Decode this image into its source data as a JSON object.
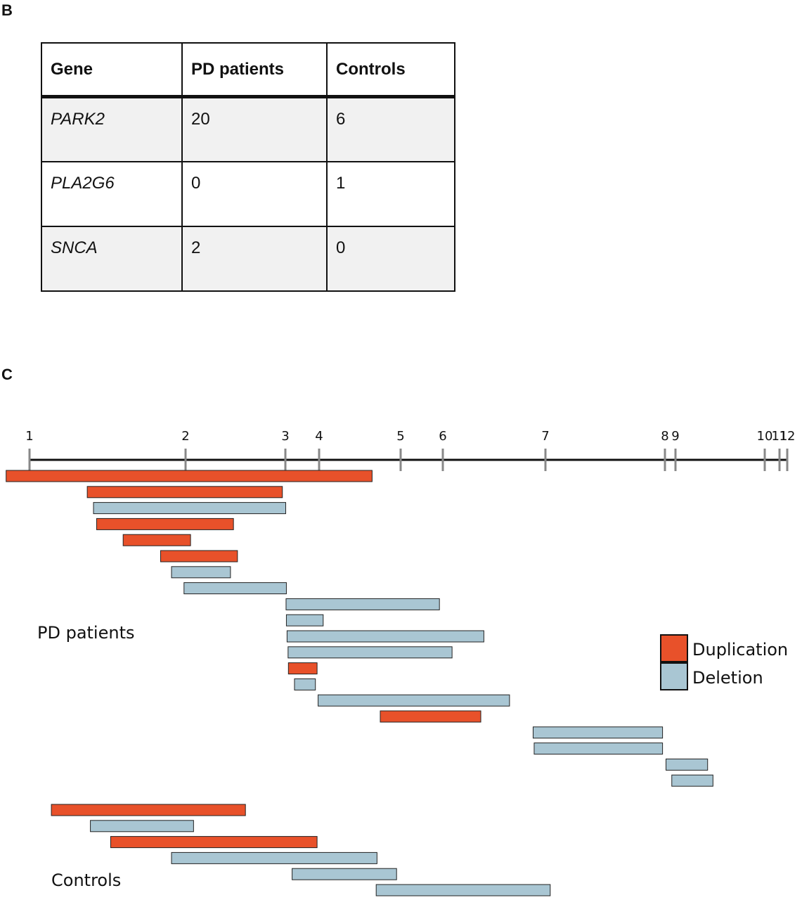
{
  "panels": {
    "b": "B",
    "c": "C"
  },
  "table": {
    "headers": [
      "Gene",
      "PD patients",
      "Controls"
    ],
    "rows": [
      {
        "gene": "PARK2",
        "pd": "20",
        "controls": "6"
      },
      {
        "gene": "PLA2G6",
        "pd": "0",
        "controls": "1"
      },
      {
        "gene": "SNCA",
        "pd": "2",
        "controls": "0"
      }
    ]
  },
  "diagram": {
    "exon_labels": [
      "1",
      "2",
      "3",
      "4",
      "5",
      "6",
      "7",
      "8",
      "9",
      "10",
      "11",
      "12"
    ],
    "group_labels": {
      "patients": "PD patients",
      "controls": "Controls"
    },
    "legend": [
      {
        "label": "Duplication",
        "color": "#e8512a"
      },
      {
        "label": "Deletion",
        "color": "#a9c6d3"
      }
    ],
    "colors": {
      "duplication": "#e8512a",
      "deletion": "#a9c6d3",
      "axis": "#111111",
      "tick": "#888888"
    },
    "patients": [
      {
        "type": "duplication",
        "start": 0.85,
        "end": 4.65
      },
      {
        "type": "duplication",
        "start": 1.37,
        "end": 2.97
      },
      {
        "type": "deletion",
        "start": 1.41,
        "end": 3.01
      },
      {
        "type": "duplication",
        "start": 1.43,
        "end": 2.48
      },
      {
        "type": "duplication",
        "start": 1.6,
        "end": 2.05
      },
      {
        "type": "duplication",
        "start": 1.84,
        "end": 2.52
      },
      {
        "type": "deletion",
        "start": 1.91,
        "end": 2.45
      },
      {
        "type": "deletion",
        "start": 1.99,
        "end": 3.03
      },
      {
        "type": "deletion",
        "start": 3.02,
        "end": 5.92
      },
      {
        "type": "deletion",
        "start": 3.03,
        "end": 4.05
      },
      {
        "type": "deletion",
        "start": 3.05,
        "end": 6.4
      },
      {
        "type": "deletion",
        "start": 3.08,
        "end": 6.09
      },
      {
        "type": "duplication",
        "start": 3.09,
        "end": 3.94
      },
      {
        "type": "deletion",
        "start": 3.27,
        "end": 3.89
      },
      {
        "type": "deletion",
        "start": 3.97,
        "end": 6.65
      },
      {
        "type": "duplication",
        "start": 4.75,
        "end": 6.37
      },
      {
        "type": "deletion",
        "start": 6.88,
        "end": 7.98
      },
      {
        "type": "deletion",
        "start": 6.89,
        "end": 7.98
      },
      {
        "type": "deletion",
        "start": 8.1,
        "end": 9.36
      },
      {
        "type": "deletion",
        "start": 8.65,
        "end": 9.42
      }
    ],
    "controls": [
      {
        "type": "duplication",
        "start": 1.14,
        "end": 2.6
      },
      {
        "type": "deletion",
        "start": 1.39,
        "end": 2.08
      },
      {
        "type": "duplication",
        "start": 1.52,
        "end": 3.94
      },
      {
        "type": "deletion",
        "start": 1.91,
        "end": 4.71
      },
      {
        "type": "deletion",
        "start": 3.2,
        "end": 4.95
      },
      {
        "type": "deletion",
        "start": 4.7,
        "end": 7.04
      }
    ]
  }
}
